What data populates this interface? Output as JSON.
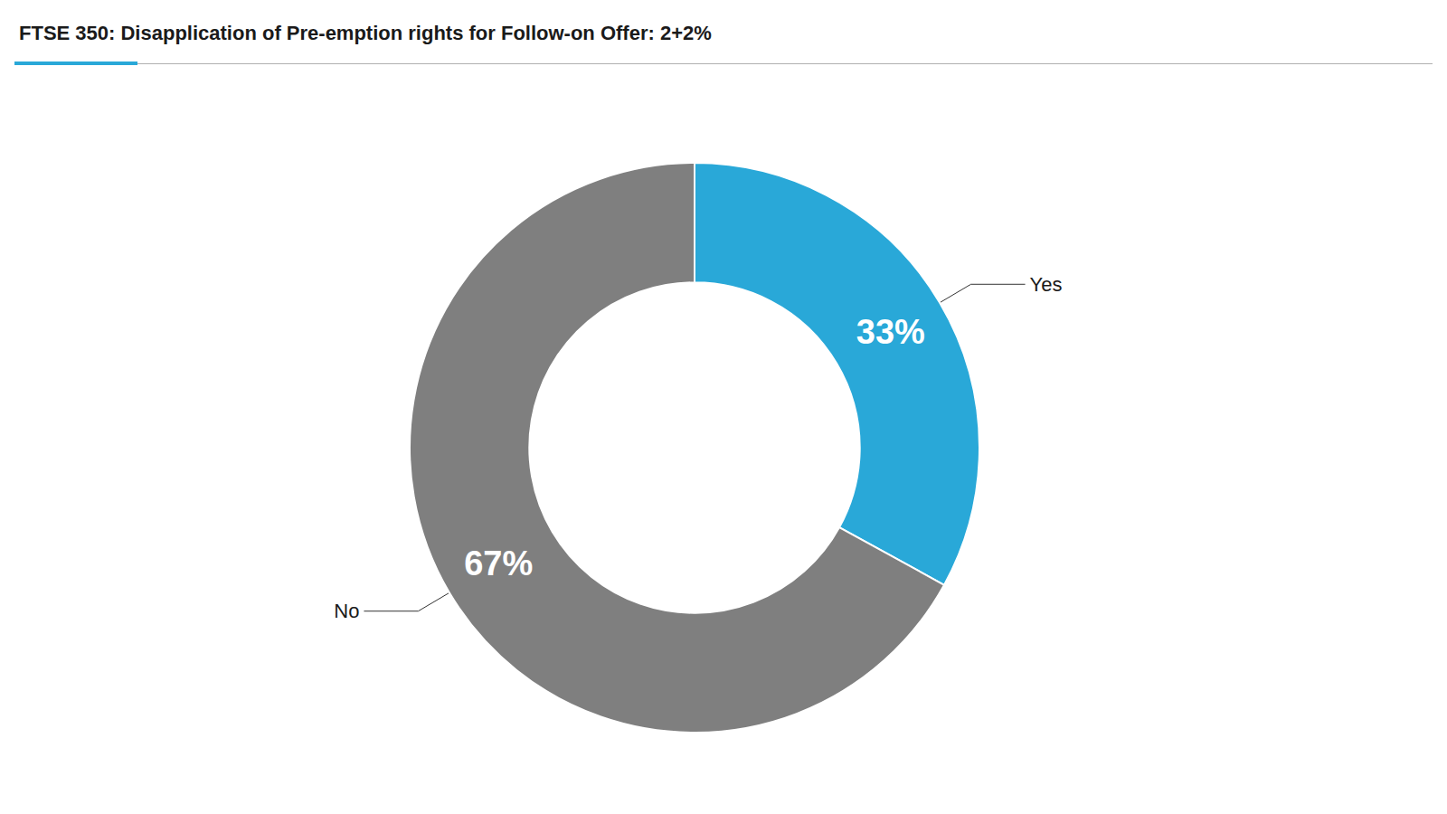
{
  "chart_data": {
    "type": "donut",
    "title": "FTSE 350: Disapplication of Pre-emption rights for Follow-on Offer: 2+2%",
    "categories": [
      "Yes",
      "No"
    ],
    "values": [
      33,
      67
    ],
    "value_labels": [
      "33%",
      "67%"
    ],
    "colors": [
      "#29a8d8",
      "#7f7f7f"
    ],
    "data_labels": true
  }
}
